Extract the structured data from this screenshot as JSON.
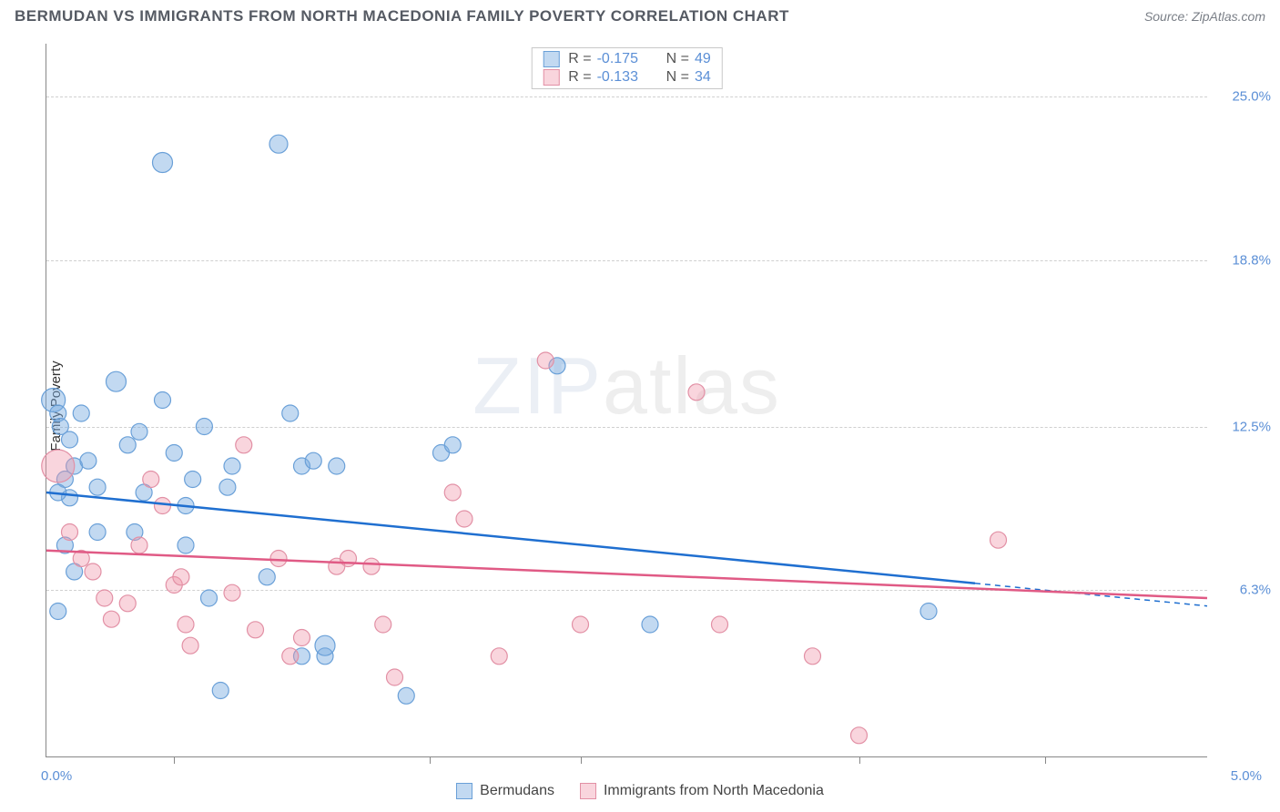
{
  "header": {
    "title": "BERMUDAN VS IMMIGRANTS FROM NORTH MACEDONIA FAMILY POVERTY CORRELATION CHART",
    "source": "Source: ZipAtlas.com"
  },
  "watermark": {
    "zip": "ZIP",
    "atlas": "atlas"
  },
  "chart": {
    "type": "scatter",
    "y_axis_label": "Family Poverty",
    "background_color": "#ffffff",
    "grid_color": "#d0d0d0",
    "axis_color": "#888888",
    "xlim": [
      0.0,
      5.0
    ],
    "ylim": [
      0.0,
      27.0
    ],
    "x_limit_labels": [
      "0.0%",
      "5.0%"
    ],
    "x_tick_positions": [
      0.55,
      1.65,
      2.3,
      3.5,
      4.3
    ],
    "y_ticks": [
      {
        "value": 25.0,
        "label": "25.0%"
      },
      {
        "value": 18.8,
        "label": "18.8%"
      },
      {
        "value": 12.5,
        "label": "12.5%"
      },
      {
        "value": 6.3,
        "label": "6.3%"
      }
    ],
    "y_tick_color": "#5b8fd6",
    "x_tick_color": "#5b8fd6",
    "series": [
      {
        "name": "Bermudans",
        "fill_color": "rgba(120,170,225,0.45)",
        "stroke_color": "#6aa0d8",
        "line_color": "#1f6fd0",
        "trend": {
          "start_y": 10.0,
          "end_y": 5.7,
          "solid_until_x": 4.0
        },
        "R": "-0.175",
        "N": "49",
        "marker_radius": 9,
        "points": [
          {
            "x": 0.03,
            "y": 13.5,
            "r": 13
          },
          {
            "x": 0.05,
            "y": 13.0
          },
          {
            "x": 0.08,
            "y": 10.5
          },
          {
            "x": 0.06,
            "y": 12.5
          },
          {
            "x": 0.1,
            "y": 12.0
          },
          {
            "x": 0.12,
            "y": 11.0
          },
          {
            "x": 0.1,
            "y": 9.8
          },
          {
            "x": 0.05,
            "y": 10.0
          },
          {
            "x": 0.15,
            "y": 13.0
          },
          {
            "x": 0.18,
            "y": 11.2
          },
          {
            "x": 0.22,
            "y": 10.2
          },
          {
            "x": 0.08,
            "y": 8.0
          },
          {
            "x": 0.12,
            "y": 7.0
          },
          {
            "x": 0.05,
            "y": 5.5
          },
          {
            "x": 0.22,
            "y": 8.5
          },
          {
            "x": 0.3,
            "y": 14.2,
            "r": 11
          },
          {
            "x": 0.35,
            "y": 11.8
          },
          {
            "x": 0.4,
            "y": 12.3
          },
          {
            "x": 0.42,
            "y": 10.0
          },
          {
            "x": 0.38,
            "y": 8.5
          },
          {
            "x": 0.5,
            "y": 13.5
          },
          {
            "x": 0.55,
            "y": 11.5
          },
          {
            "x": 0.5,
            "y": 22.5,
            "r": 11
          },
          {
            "x": 0.6,
            "y": 9.5
          },
          {
            "x": 0.63,
            "y": 10.5
          },
          {
            "x": 0.6,
            "y": 8.0
          },
          {
            "x": 0.68,
            "y": 12.5
          },
          {
            "x": 0.7,
            "y": 6.0
          },
          {
            "x": 0.75,
            "y": 2.5
          },
          {
            "x": 0.78,
            "y": 10.2
          },
          {
            "x": 0.8,
            "y": 11.0
          },
          {
            "x": 0.95,
            "y": 6.8
          },
          {
            "x": 1.0,
            "y": 23.2,
            "r": 10
          },
          {
            "x": 1.05,
            "y": 13.0
          },
          {
            "x": 1.1,
            "y": 11.0
          },
          {
            "x": 1.1,
            "y": 3.8
          },
          {
            "x": 1.15,
            "y": 11.2
          },
          {
            "x": 1.2,
            "y": 3.8
          },
          {
            "x": 1.25,
            "y": 11.0
          },
          {
            "x": 1.2,
            "y": 4.2,
            "r": 11
          },
          {
            "x": 1.55,
            "y": 2.3
          },
          {
            "x": 1.7,
            "y": 11.5
          },
          {
            "x": 1.75,
            "y": 11.8
          },
          {
            "x": 2.2,
            "y": 14.8
          },
          {
            "x": 2.6,
            "y": 5.0
          },
          {
            "x": 3.8,
            "y": 5.5
          }
        ]
      },
      {
        "name": "Immigrants from North Macedonia",
        "fill_color": "rgba(240,150,170,0.40)",
        "stroke_color": "#e290a5",
        "line_color": "#e05a85",
        "trend": {
          "start_y": 7.8,
          "end_y": 6.0,
          "solid_until_x": 5.0
        },
        "R": "-0.133",
        "N": "34",
        "marker_radius": 9,
        "points": [
          {
            "x": 0.05,
            "y": 11.0,
            "r": 18
          },
          {
            "x": 0.1,
            "y": 8.5
          },
          {
            "x": 0.15,
            "y": 7.5
          },
          {
            "x": 0.2,
            "y": 7.0
          },
          {
            "x": 0.25,
            "y": 6.0
          },
          {
            "x": 0.28,
            "y": 5.2
          },
          {
            "x": 0.35,
            "y": 5.8
          },
          {
            "x": 0.4,
            "y": 8.0
          },
          {
            "x": 0.45,
            "y": 10.5
          },
          {
            "x": 0.5,
            "y": 9.5
          },
          {
            "x": 0.55,
            "y": 6.5
          },
          {
            "x": 0.58,
            "y": 6.8
          },
          {
            "x": 0.6,
            "y": 5.0
          },
          {
            "x": 0.62,
            "y": 4.2
          },
          {
            "x": 0.8,
            "y": 6.2
          },
          {
            "x": 0.85,
            "y": 11.8
          },
          {
            "x": 0.9,
            "y": 4.8
          },
          {
            "x": 1.0,
            "y": 7.5
          },
          {
            "x": 1.05,
            "y": 3.8
          },
          {
            "x": 1.1,
            "y": 4.5
          },
          {
            "x": 1.25,
            "y": 7.2
          },
          {
            "x": 1.3,
            "y": 7.5
          },
          {
            "x": 1.4,
            "y": 7.2
          },
          {
            "x": 1.45,
            "y": 5.0
          },
          {
            "x": 1.5,
            "y": 3.0
          },
          {
            "x": 1.75,
            "y": 10.0
          },
          {
            "x": 1.8,
            "y": 9.0
          },
          {
            "x": 1.95,
            "y": 3.8
          },
          {
            "x": 2.15,
            "y": 15.0
          },
          {
            "x": 2.3,
            "y": 5.0
          },
          {
            "x": 2.8,
            "y": 13.8
          },
          {
            "x": 2.9,
            "y": 5.0
          },
          {
            "x": 3.3,
            "y": 3.8
          },
          {
            "x": 3.5,
            "y": 0.8
          },
          {
            "x": 4.1,
            "y": 8.2
          }
        ]
      }
    ]
  },
  "legend_top_labels": {
    "R": "R =",
    "N": "N ="
  }
}
